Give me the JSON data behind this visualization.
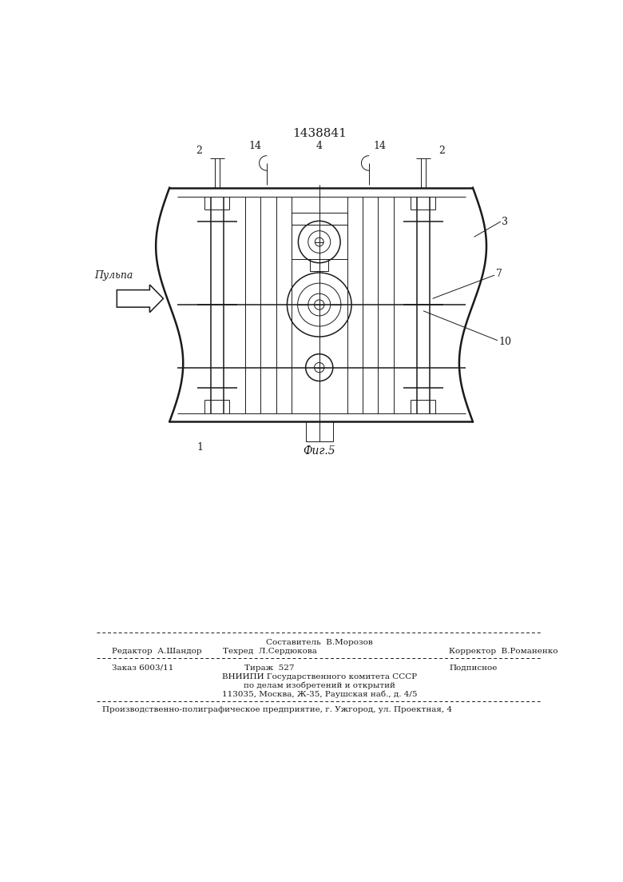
{
  "patent_number": "1438841",
  "fig_label": "Фиг.5",
  "pulp_label": "Пульпа",
  "bg_color": "#ffffff",
  "line_color": "#1a1a1a",
  "footer": {
    "compositor_label": "Составитель  В.Морозов",
    "editor_label": "Редактор  А.Шандор",
    "techred_label": "Техред  Л.Сердюкова",
    "corrector_label": "Корректор  В.Романенко",
    "order_label": "Заказ 6003/11",
    "circulation_label": "Тираж  527",
    "subscription_label": "Подписное",
    "org_line1": "ВНИИПИ Государственного комитета СССР",
    "org_line2": "по делам изобретений и открытий",
    "org_line3": "113035, Москва, Ж-35, Раушская наб., д. 4/5",
    "production": "Производственно-полиграфическое предприятие, г. Ужгород, ул. Проектная, 4"
  }
}
